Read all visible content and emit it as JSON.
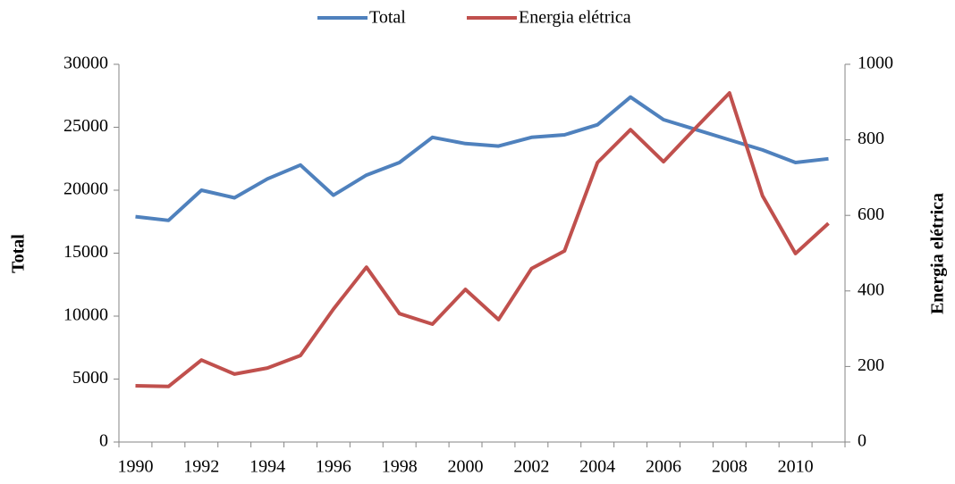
{
  "chart_data": {
    "type": "line",
    "categories": [
      "1990",
      null,
      "1992",
      null,
      "1994",
      null,
      "1996",
      null,
      "1998",
      null,
      "2000",
      null,
      "2002",
      null,
      "2004",
      null,
      "2006",
      null,
      "2008",
      null,
      "2010",
      null
    ],
    "series": [
      {
        "name": "Total",
        "color": "#4f81bd",
        "axis": "y",
        "values": [
          17900,
          17600,
          20000,
          19400,
          20900,
          22000,
          19600,
          21200,
          22200,
          24200,
          23700,
          23500,
          24200,
          24400,
          25200,
          27400,
          25600,
          24800,
          24000,
          23200,
          22200,
          22500
        ]
      },
      {
        "name": "Energia elétrica",
        "color": "#c0504d",
        "axis": "y2",
        "values": [
          149,
          147,
          217,
          180,
          196,
          229,
          352,
          463,
          340,
          312,
          404,
          324,
          459,
          506,
          740,
          827,
          742,
          834,
          924,
          652,
          499,
          579
        ]
      }
    ],
    "ylabel": "Total",
    "y2label": "Energia elétrica",
    "ylim": [
      0,
      30000
    ],
    "yticks": [
      0,
      5000,
      10000,
      15000,
      20000,
      25000,
      30000
    ],
    "y2lim": [
      0,
      1000
    ],
    "y2ticks": [
      0,
      200,
      400,
      600,
      800,
      1000
    ],
    "legend": "top",
    "grid": false
  }
}
